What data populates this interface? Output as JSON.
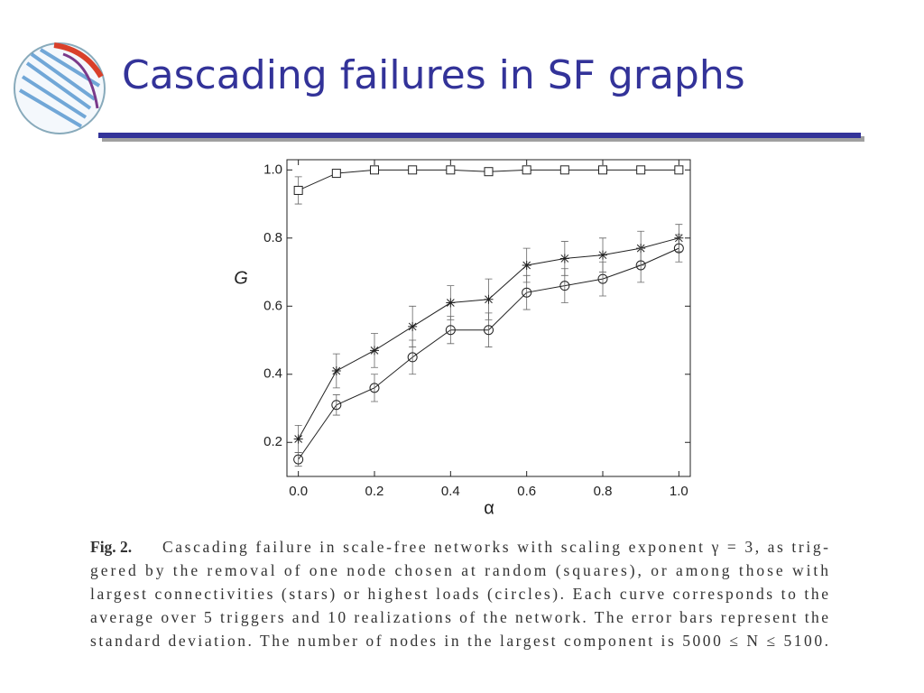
{
  "slide": {
    "title": "Cascading failures in SF graphs"
  },
  "chart_data": {
    "type": "line",
    "x": [
      0,
      0.1,
      0.2,
      0.3,
      0.4,
      0.5,
      0.6,
      0.7,
      0.8,
      0.9,
      1
    ],
    "series": [
      {
        "marker": "square",
        "color": "#222222",
        "values": [
          0.94,
          0.99,
          1.0,
          1.0,
          1.0,
          0.995,
          1.0,
          1.0,
          1.0,
          1.0,
          1.0
        ],
        "errors": [
          0.04,
          0.01,
          0,
          0,
          0,
          0,
          0,
          0,
          0,
          0,
          0
        ]
      },
      {
        "marker": "star",
        "color": "#222222",
        "values": [
          0.21,
          0.41,
          0.47,
          0.54,
          0.61,
          0.62,
          0.72,
          0.74,
          0.75,
          0.77,
          0.8
        ],
        "errors": [
          0.04,
          0.05,
          0.05,
          0.06,
          0.05,
          0.06,
          0.05,
          0.05,
          0.05,
          0.05,
          0.04
        ]
      },
      {
        "marker": "circle",
        "color": "#222222",
        "values": [
          0.15,
          0.31,
          0.36,
          0.45,
          0.53,
          0.53,
          0.64,
          0.66,
          0.68,
          0.72,
          0.77
        ],
        "errors": [
          0.02,
          0.03,
          0.04,
          0.05,
          0.04,
          0.05,
          0.05,
          0.05,
          0.05,
          0.05,
          0.04
        ]
      }
    ],
    "xlabel": "α",
    "ylabel": "G",
    "xlim": [
      -0.03,
      1.03
    ],
    "ylim": [
      0.1,
      1.03
    ],
    "xticks": [
      {
        "value": 0,
        "label": "0.0"
      },
      0.2,
      0.4,
      0.6,
      0.8,
      {
        "value": 1,
        "label": "1.0"
      }
    ],
    "yticks": [
      0.2,
      0.4,
      0.6,
      0.8,
      {
        "value": 1,
        "label": "1.0"
      }
    ]
  },
  "caption": {
    "label": "Fig. 2.",
    "lines": [
      "Cascading failure in scale-free networks with scaling exponent γ = 3, as trig-",
      "gered by the removal of one node chosen at random (squares), or among those with",
      "largest connectivities (stars) or highest loads (circles). Each curve corresponds to the",
      "average over 5 triggers and 10 realizations of the network. The error bars represent the",
      "standard deviation. The number of nodes in the largest component is 5000 ≤ N ≤ 5100."
    ]
  }
}
